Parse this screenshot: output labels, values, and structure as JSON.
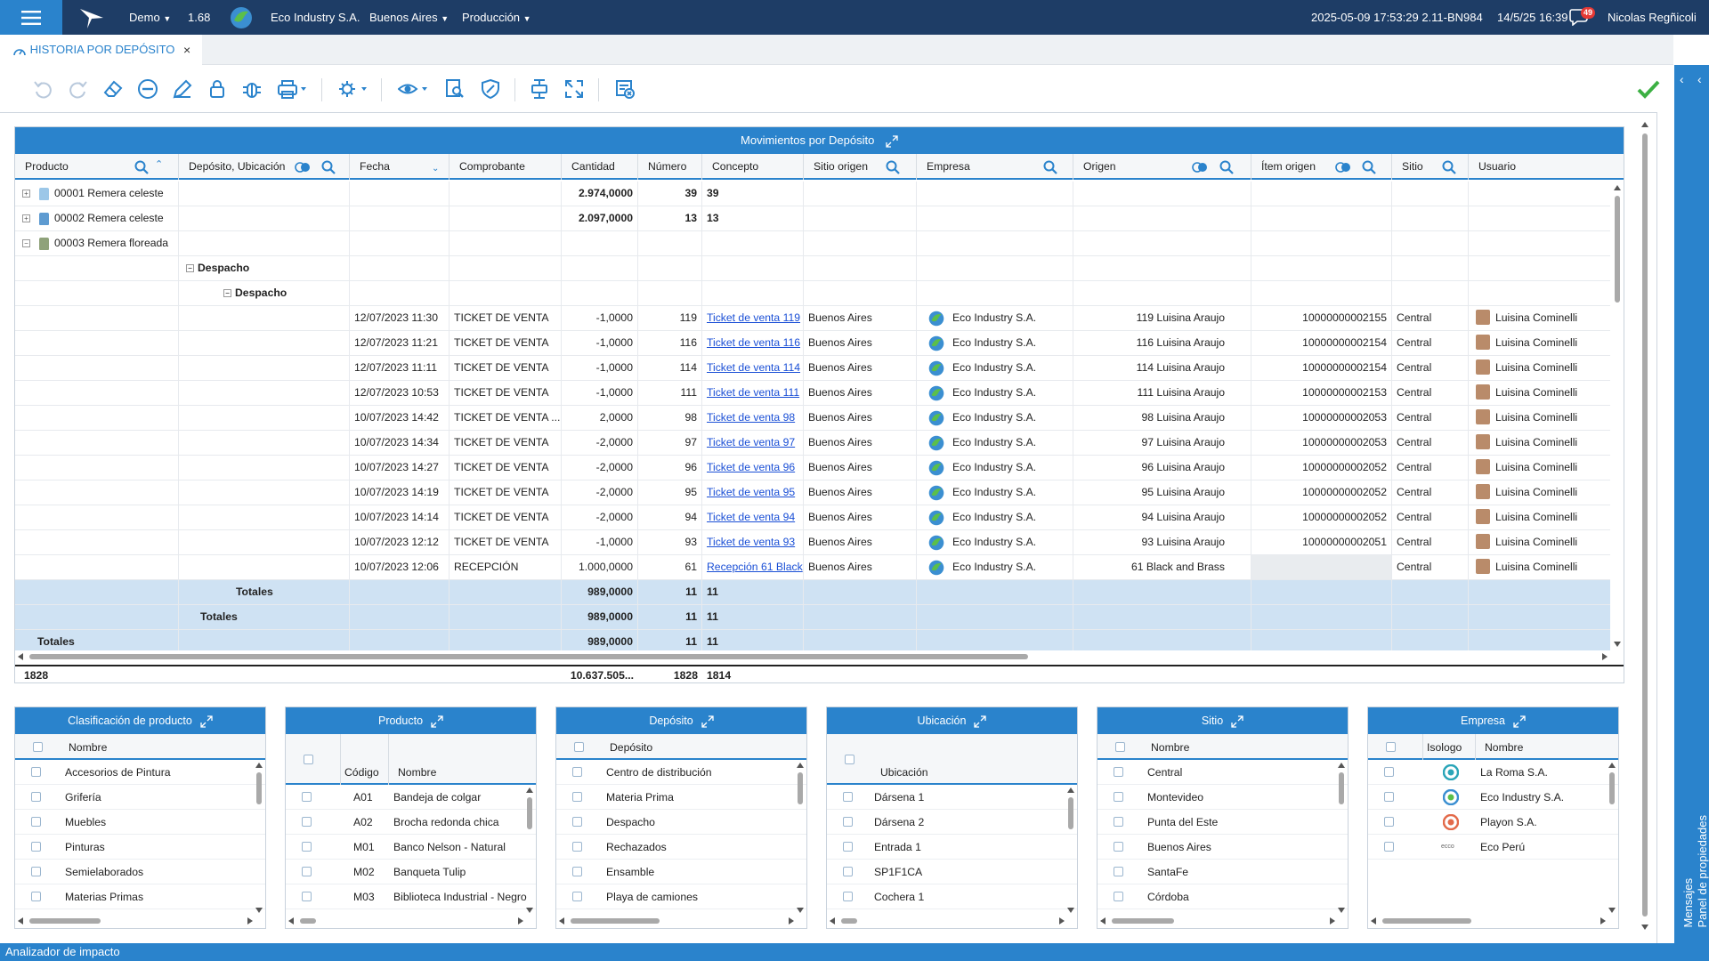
{
  "topbar": {
    "env": "Demo",
    "version": "1.68",
    "company": "Eco Industry S.A.",
    "city": "Buenos Aires",
    "module": "Producción",
    "build": "2025-05-09 17:53:29 2.11-BN984",
    "date": "14/5/25 16:39",
    "notifications": "49",
    "user": "Nicolas Regñicoli"
  },
  "tab": {
    "title": "HISTORIA POR DEPÓSITO",
    "close": "×"
  },
  "grid": {
    "title": "Movimientos por Depósito",
    "columns": [
      "Producto",
      "Depósito, Ubicación",
      "Fecha",
      "Comprobante",
      "Cantidad",
      "Número",
      "Concepto",
      "Sitio origen",
      "Empresa",
      "Origen",
      "Ítem origen",
      "Sitio",
      "Usuario"
    ],
    "group_rows": [
      {
        "producto": "00001 Remera celeste",
        "cantidad": "2.974,0000",
        "numero": "39",
        "concepto": "39"
      },
      {
        "producto": "00002 Remera celeste",
        "cantidad": "2.097,0000",
        "numero": "13",
        "concepto": "13"
      },
      {
        "producto": "00003 Remera floreada"
      }
    ],
    "subgroup1": "Despacho",
    "subgroup2": "Despacho",
    "rows": [
      {
        "fecha": "12/07/2023 11:30",
        "comprobante": "TICKET DE VENTA",
        "cantidad": "-1,0000",
        "numero": "119",
        "concepto": "Ticket de venta 119",
        "sitio_origen": "Buenos Aires",
        "empresa": "Eco Industry S.A.",
        "origen": "119 Luisina Araujo",
        "item_origen": "10000000002155",
        "sitio": "Central",
        "usuario": "Luisina Cominelli"
      },
      {
        "fecha": "12/07/2023 11:21",
        "comprobante": "TICKET DE VENTA",
        "cantidad": "-1,0000",
        "numero": "116",
        "concepto": "Ticket de venta 116",
        "sitio_origen": "Buenos Aires",
        "empresa": "Eco Industry S.A.",
        "origen": "116 Luisina Araujo",
        "item_origen": "10000000002154",
        "sitio": "Central",
        "usuario": "Luisina Cominelli"
      },
      {
        "fecha": "12/07/2023 11:11",
        "comprobante": "TICKET DE VENTA",
        "cantidad": "-1,0000",
        "numero": "114",
        "concepto": "Ticket de venta 114",
        "sitio_origen": "Buenos Aires",
        "empresa": "Eco Industry S.A.",
        "origen": "114 Luisina Araujo",
        "item_origen": "10000000002154",
        "sitio": "Central",
        "usuario": "Luisina Cominelli"
      },
      {
        "fecha": "12/07/2023 10:53",
        "comprobante": "TICKET DE VENTA",
        "cantidad": "-1,0000",
        "numero": "111",
        "concepto": "Ticket de venta 111",
        "sitio_origen": "Buenos Aires",
        "empresa": "Eco Industry S.A.",
        "origen": "111 Luisina Araujo",
        "item_origen": "10000000002153",
        "sitio": "Central",
        "usuario": "Luisina Cominelli"
      },
      {
        "fecha": "10/07/2023 14:42",
        "comprobante": "TICKET DE VENTA ...",
        "cantidad": "2,0000",
        "numero": "98",
        "concepto": "Ticket de venta 98",
        "sitio_origen": "Buenos Aires",
        "empresa": "Eco Industry S.A.",
        "origen": "98 Luisina Araujo",
        "item_origen": "10000000002053",
        "sitio": "Central",
        "usuario": "Luisina Cominelli"
      },
      {
        "fecha": "10/07/2023 14:34",
        "comprobante": "TICKET DE VENTA",
        "cantidad": "-2,0000",
        "numero": "97",
        "concepto": "Ticket de venta 97",
        "sitio_origen": "Buenos Aires",
        "empresa": "Eco Industry S.A.",
        "origen": "97 Luisina Araujo",
        "item_origen": "10000000002053",
        "sitio": "Central",
        "usuario": "Luisina Cominelli"
      },
      {
        "fecha": "10/07/2023 14:27",
        "comprobante": "TICKET DE VENTA",
        "cantidad": "-2,0000",
        "numero": "96",
        "concepto": "Ticket de venta 96",
        "sitio_origen": "Buenos Aires",
        "empresa": "Eco Industry S.A.",
        "origen": "96 Luisina Araujo",
        "item_origen": "10000000002052",
        "sitio": "Central",
        "usuario": "Luisina Cominelli"
      },
      {
        "fecha": "10/07/2023 14:19",
        "comprobante": "TICKET DE VENTA",
        "cantidad": "-2,0000",
        "numero": "95",
        "concepto": "Ticket de venta 95",
        "sitio_origen": "Buenos Aires",
        "empresa": "Eco Industry S.A.",
        "origen": "95 Luisina Araujo",
        "item_origen": "10000000002052",
        "sitio": "Central",
        "usuario": "Luisina Cominelli"
      },
      {
        "fecha": "10/07/2023 14:14",
        "comprobante": "TICKET DE VENTA",
        "cantidad": "-2,0000",
        "numero": "94",
        "concepto": "Ticket de venta 94",
        "sitio_origen": "Buenos Aires",
        "empresa": "Eco Industry S.A.",
        "origen": "94 Luisina Araujo",
        "item_origen": "10000000002052",
        "sitio": "Central",
        "usuario": "Luisina Cominelli"
      },
      {
        "fecha": "10/07/2023 12:12",
        "comprobante": "TICKET DE VENTA",
        "cantidad": "-1,0000",
        "numero": "93",
        "concepto": "Ticket de venta 93",
        "sitio_origen": "Buenos Aires",
        "empresa": "Eco Industry S.A.",
        "origen": "93 Luisina Araujo",
        "item_origen": "10000000002051",
        "sitio": "Central",
        "usuario": "Luisina Cominelli"
      },
      {
        "fecha": "10/07/2023 12:06",
        "comprobante": "RECEPCIÓN",
        "cantidad": "1.000,0000",
        "numero": "61",
        "concepto": "Recepción 61 Black",
        "sitio_origen": "Buenos Aires",
        "empresa": "Eco Industry S.A.",
        "origen": "61 Black and Brass",
        "item_origen": "",
        "sitio": "Central",
        "usuario": "Luisina Cominelli"
      }
    ],
    "totals": [
      {
        "label": "Totales",
        "cantidad": "989,0000",
        "numero": "11",
        "concepto": "11"
      },
      {
        "label": "Totales",
        "cantidad": "989,0000",
        "numero": "11",
        "concepto": "11"
      },
      {
        "label": "Totales",
        "cantidad": "989,0000",
        "numero": "11",
        "concepto": "11"
      }
    ],
    "footer": {
      "producto": "1828",
      "cantidad": "10.637.505...",
      "numero": "1828",
      "concepto": "1814"
    }
  },
  "panels": [
    {
      "title": "Clasificación de producto",
      "cols": [
        "Nombre"
      ],
      "rows": [
        [
          "Accesorios de Pintura"
        ],
        [
          "Grifería"
        ],
        [
          "Muebles"
        ],
        [
          "Pinturas"
        ],
        [
          "Semielaborados"
        ],
        [
          "Materias Primas"
        ]
      ]
    },
    {
      "title": "Producto",
      "cols": [
        "Código",
        "Nombre"
      ],
      "rows": [
        [
          "A01",
          "Bandeja de colgar"
        ],
        [
          "A02",
          "Brocha redonda chica"
        ],
        [
          "M01",
          "Banco Nelson - Natural"
        ],
        [
          "M02",
          "Banqueta Tulip"
        ],
        [
          "M03",
          "Biblioteca Industrial - Negro"
        ]
      ]
    },
    {
      "title": "Depósito",
      "cols": [
        "Depósito"
      ],
      "rows": [
        [
          "Centro de distribución"
        ],
        [
          "Materia Prima"
        ],
        [
          "Despacho"
        ],
        [
          "Rechazados"
        ],
        [
          "Ensamble"
        ],
        [
          "Playa de camiones"
        ]
      ]
    },
    {
      "title": "Ubicación",
      "cols": [
        "Ubicación"
      ],
      "rows": [
        [
          "Dársena 1"
        ],
        [
          "Dársena 2"
        ],
        [
          "Entrada 1"
        ],
        [
          "SP1F1CA"
        ],
        [
          "Cochera 1"
        ]
      ]
    },
    {
      "title": "Sitio",
      "cols": [
        "Nombre"
      ],
      "rows": [
        [
          "Central"
        ],
        [
          "Montevideo"
        ],
        [
          "Punta del Este"
        ],
        [
          "Buenos Aires"
        ],
        [
          "SantaFe"
        ],
        [
          "Córdoba"
        ]
      ]
    },
    {
      "title": "Empresa",
      "cols": [
        "Isologo",
        "Nombre"
      ],
      "rows": [
        [
          "",
          "La Roma S.A."
        ],
        [
          "",
          "Eco Industry S.A."
        ],
        [
          "",
          "Playon S.A."
        ],
        [
          "ecco",
          "Eco Perú"
        ]
      ]
    }
  ],
  "side_panel": {
    "label": "Mensajes\nPanel de propiedades"
  },
  "status": {
    "text": "Analizador de impacto"
  },
  "colors": {
    "brand_dark": "#1e3d66",
    "accent": "#2a83cc",
    "total_row": "#cfe2f3",
    "link": "#1a4fd6",
    "ok": "#3cb043"
  }
}
